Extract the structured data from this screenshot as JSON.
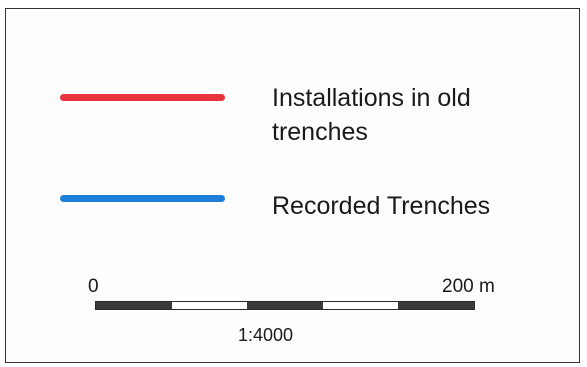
{
  "legend": {
    "entries": [
      {
        "label": "Installations in old trenches",
        "color": "#e8343c",
        "symbol": "red-line"
      },
      {
        "label": "Recorded Trenches",
        "color": "#1f7fd8",
        "symbol": "blue-line"
      }
    ]
  },
  "scale": {
    "start_label": "0",
    "end_label": "200 m",
    "ratio": "1:4000",
    "segments": 5
  }
}
